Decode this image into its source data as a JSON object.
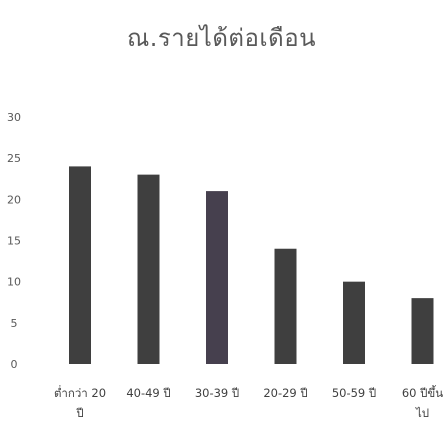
{
  "chart_data": {
    "type": "bar",
    "title": "ณ.รายได้ต่อเดือน",
    "categories": [
      "ต่ำกว่า 20 ปี",
      "40-49 ปี",
      "30-39 ปี",
      "20-29 ปี",
      "50-59 ปี",
      "60 ปีขึ้นไป"
    ],
    "category_label_lines": [
      [
        "ต่ำกว่า 20",
        "ปี"
      ],
      [
        "40-49 ปี"
      ],
      [
        "30-39 ปี"
      ],
      [
        "20-29 ปี"
      ],
      [
        "50-59 ปี"
      ],
      [
        "60 ปีขึ้น",
        "ไป"
      ]
    ],
    "values": [
      24,
      23,
      21,
      14,
      10,
      8
    ],
    "bar_colors": [
      "#3f3f3f",
      "#3f3f3f",
      "#46404e",
      "#3f3f3f",
      "#3f3f3f",
      "#3f3f3f"
    ],
    "ylim": [
      0,
      30
    ],
    "yticks": [
      0,
      5,
      10,
      15,
      20,
      25,
      30
    ],
    "xlabel": "",
    "ylabel": "",
    "grid": false,
    "legend": "none"
  }
}
